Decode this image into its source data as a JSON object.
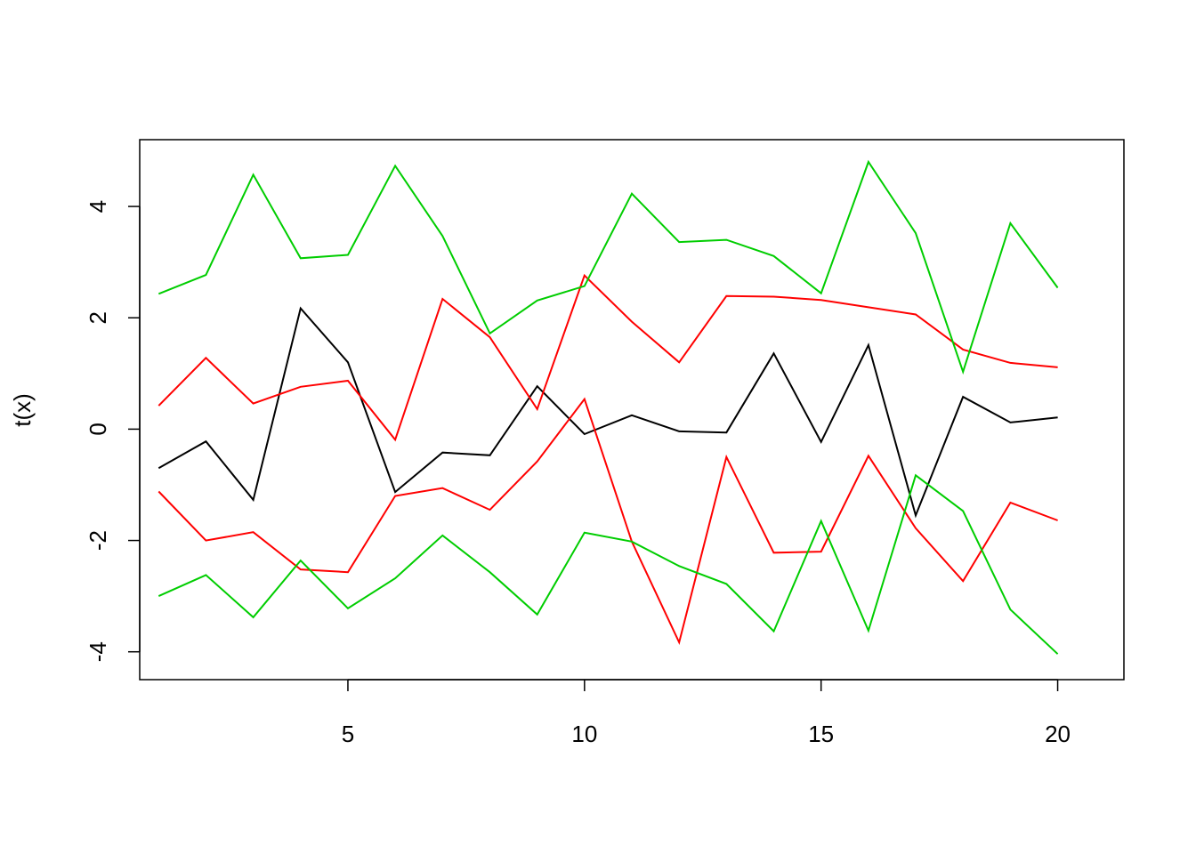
{
  "chart_data": {
    "type": "line",
    "title": "",
    "xlabel": "",
    "ylabel": "t(x)",
    "x": [
      1,
      2,
      3,
      4,
      5,
      6,
      7,
      8,
      9,
      10,
      11,
      12,
      13,
      14,
      15,
      16,
      17,
      18,
      19,
      20
    ],
    "xlim": [
      0.6,
      21.4
    ],
    "ylim": [
      -4.5,
      5.2
    ],
    "xticks": [
      5,
      10,
      15,
      20
    ],
    "yticks": [
      -4,
      -2,
      0,
      2,
      4
    ],
    "grid": false,
    "series": [
      {
        "color": "#000000",
        "values": [
          -0.7,
          -0.22,
          -1.27,
          2.17,
          1.2,
          -1.13,
          -0.42,
          -0.47,
          0.77,
          -0.09,
          0.25,
          -0.04,
          -0.06,
          1.36,
          -0.23,
          1.51,
          -1.55,
          0.58,
          0.12,
          0.21
        ]
      },
      {
        "color": "#ff0000",
        "values": [
          0.42,
          1.28,
          0.46,
          0.76,
          0.87,
          -0.19,
          2.34,
          1.65,
          0.36,
          2.76,
          1.93,
          1.2,
          2.39,
          2.38,
          2.32,
          2.19,
          2.06,
          1.43,
          1.19,
          1.11
        ]
      },
      {
        "color": "#ff0000",
        "values": [
          -1.12,
          -2.0,
          -1.85,
          -2.52,
          -2.57,
          -1.2,
          -1.06,
          -1.45,
          -0.58,
          0.54,
          -2.02,
          -3.83,
          -0.5,
          -2.22,
          -2.2,
          -0.48,
          -1.78,
          -2.73,
          -1.32,
          -1.64
        ]
      },
      {
        "color": "#00cd00",
        "values": [
          2.43,
          2.77,
          4.57,
          3.07,
          3.13,
          4.73,
          3.47,
          1.72,
          2.31,
          2.57,
          4.23,
          3.36,
          3.4,
          3.11,
          2.44,
          4.8,
          3.52,
          1.03,
          3.7,
          2.54
        ]
      },
      {
        "color": "#00cd00",
        "values": [
          -3.0,
          -2.62,
          -3.38,
          -2.36,
          -3.22,
          -2.68,
          -1.91,
          -2.57,
          -3.33,
          -1.86,
          -2.02,
          -2.46,
          -2.78,
          -3.63,
          -1.65,
          -3.62,
          -0.83,
          -1.47,
          -3.24,
          -4.04
        ]
      }
    ]
  }
}
